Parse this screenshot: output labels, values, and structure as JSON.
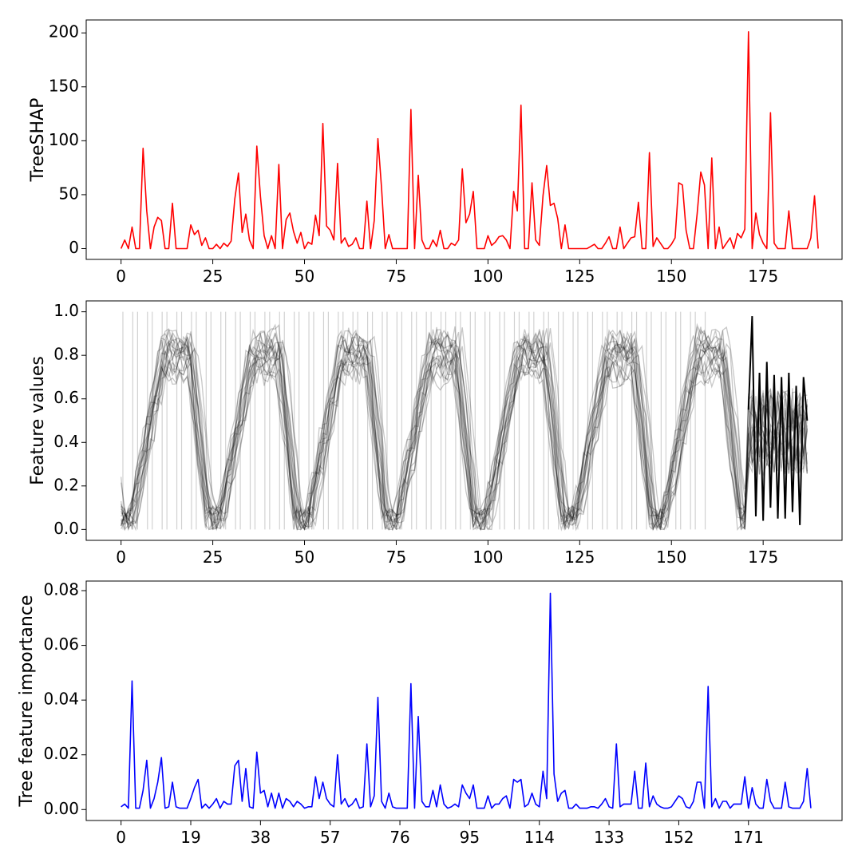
{
  "chart_data": [
    {
      "type": "line",
      "ylabel": "TreeSHAP",
      "xlim": [
        -9.5,
        196.5
      ],
      "ylim": [
        -10,
        212
      ],
      "x_ticks": [
        0,
        25,
        50,
        75,
        100,
        125,
        150,
        175
      ],
      "y_ticks": [
        0,
        50,
        100,
        150,
        200
      ],
      "color": "#ff0000",
      "series": [
        {
          "values": [
            0,
            8,
            0,
            20,
            0,
            0,
            93,
            35,
            0,
            20,
            29,
            26,
            0,
            0,
            42,
            0,
            0,
            0,
            0,
            22,
            13,
            17,
            3,
            10,
            0,
            0,
            4,
            0,
            5,
            2,
            7,
            46,
            70,
            15,
            32,
            8,
            0,
            95,
            48,
            12,
            0,
            12,
            0,
            78,
            0,
            27,
            33,
            16,
            5,
            15,
            0,
            6,
            4,
            31,
            12,
            116,
            21,
            17,
            8,
            79,
            5,
            10,
            2,
            4,
            10,
            0,
            0,
            44,
            0,
            26,
            102,
            56,
            0,
            13,
            0,
            0,
            0,
            0,
            0,
            129,
            0,
            68,
            8,
            0,
            0,
            8,
            2,
            17,
            0,
            0,
            5,
            3,
            8,
            74,
            24,
            32,
            53,
            0,
            0,
            0,
            12,
            3,
            6,
            11,
            12,
            8,
            0,
            53,
            35,
            133,
            0,
            0,
            61,
            8,
            3,
            49,
            77,
            40,
            42,
            28,
            0,
            22,
            0,
            0,
            0,
            0,
            0,
            0,
            2,
            4,
            0,
            0,
            5,
            11,
            0,
            0,
            20,
            0,
            5,
            10,
            11,
            43,
            0,
            0,
            89,
            2,
            10,
            5,
            0,
            0,
            4,
            10,
            61,
            59,
            17,
            0,
            0,
            32,
            71,
            59,
            0,
            84,
            0,
            20,
            0,
            5,
            10,
            0,
            14,
            10,
            18,
            201,
            0,
            33,
            13,
            5,
            0,
            126,
            5,
            0,
            0,
            0,
            35,
            0,
            0,
            0,
            0,
            0,
            10,
            49,
            0
          ]
        }
      ]
    },
    {
      "type": "line",
      "ylabel": "Feature values",
      "xlim": [
        -9.5,
        196.5
      ],
      "ylim": [
        -0.05,
        1.05
      ],
      "x_ticks": [
        0,
        25,
        50,
        75,
        100,
        125,
        150,
        175
      ],
      "y_ticks": [
        0.0,
        0.2,
        0.4,
        0.6,
        0.8,
        1.0
      ],
      "y_tick_labels": [
        "0.0",
        "0.2",
        "0.4",
        "0.6",
        "0.8",
        "1.0"
      ],
      "color": "#000000",
      "n_points": 188,
      "n_overlaid_samples": 20,
      "cycle_centers": [
        12,
        38,
        62,
        86,
        110,
        135,
        158
      ],
      "highlight_segment_x": [
        171,
        172,
        173,
        174,
        175,
        176,
        177,
        178,
        179,
        180,
        181,
        182,
        183,
        184,
        185,
        186,
        187
      ],
      "highlight_segment_values": [
        0.55,
        0.98,
        0.06,
        0.72,
        0.04,
        0.77,
        0.1,
        0.71,
        0.05,
        0.7,
        0.05,
        0.72,
        0.08,
        0.66,
        0.02,
        0.7,
        0.5
      ]
    },
    {
      "type": "line",
      "ylabel": "Tree feature importance",
      "xlim": [
        -9.5,
        196.5
      ],
      "ylim": [
        -0.004,
        0.0835
      ],
      "x_ticks": [
        0,
        19,
        38,
        57,
        76,
        95,
        114,
        133,
        152,
        171
      ],
      "y_ticks": [
        0.0,
        0.02,
        0.04,
        0.06,
        0.08
      ],
      "y_tick_labels": [
        "0.00",
        "0.02",
        "0.04",
        "0.06",
        "0.08"
      ],
      "color": "#0000ff",
      "series": [
        {
          "values": [
            0.001,
            0.002,
            0.0005,
            0.047,
            0.0005,
            0.0005,
            0.007,
            0.018,
            0.0005,
            0.004,
            0.01,
            0.019,
            0.0005,
            0.001,
            0.01,
            0.001,
            0.0005,
            0.0005,
            0.0005,
            0.004,
            0.008,
            0.011,
            0.0005,
            0.002,
            0.0005,
            0.002,
            0.004,
            0.0005,
            0.003,
            0.002,
            0.002,
            0.016,
            0.018,
            0.003,
            0.015,
            0.001,
            0.0005,
            0.021,
            0.006,
            0.007,
            0.001,
            0.006,
            0.0005,
            0.006,
            0.0005,
            0.004,
            0.003,
            0.001,
            0.003,
            0.002,
            0.0005,
            0.001,
            0.001,
            0.012,
            0.004,
            0.01,
            0.004,
            0.002,
            0.001,
            0.02,
            0.002,
            0.004,
            0.001,
            0.002,
            0.004,
            0.0005,
            0.001,
            0.024,
            0.001,
            0.005,
            0.041,
            0.003,
            0.0005,
            0.006,
            0.001,
            0.0005,
            0.0005,
            0.0005,
            0.0005,
            0.046,
            0.0005,
            0.034,
            0.003,
            0.001,
            0.001,
            0.007,
            0.001,
            0.009,
            0.002,
            0.0005,
            0.001,
            0.002,
            0.001,
            0.009,
            0.006,
            0.004,
            0.009,
            0.0005,
            0.0005,
            0.0005,
            0.005,
            0.0005,
            0.002,
            0.002,
            0.004,
            0.005,
            0.0005,
            0.011,
            0.01,
            0.011,
            0.001,
            0.002,
            0.006,
            0.002,
            0.001,
            0.014,
            0.004,
            0.079,
            0.013,
            0.003,
            0.006,
            0.007,
            0.0005,
            0.0005,
            0.002,
            0.0005,
            0.0005,
            0.0005,
            0.001,
            0.001,
            0.0005,
            0.002,
            0.004,
            0.001,
            0.0005,
            0.024,
            0.001,
            0.002,
            0.002,
            0.002,
            0.014,
            0.0005,
            0.0005,
            0.017,
            0.001,
            0.005,
            0.002,
            0.001,
            0.0005,
            0.0005,
            0.001,
            0.003,
            0.005,
            0.004,
            0.001,
            0.0005,
            0.003,
            0.01,
            0.01,
            0.0005,
            0.045,
            0.001,
            0.004,
            0.0005,
            0.003,
            0.003,
            0.0005,
            0.002,
            0.002,
            0.002,
            0.012,
            0.0005,
            0.008,
            0.002,
            0.0005,
            0.0005,
            0.011,
            0.003,
            0.0005,
            0.0005,
            0.0005,
            0.01,
            0.001,
            0.0005,
            0.0005,
            0.0005,
            0.003,
            0.015,
            0.0005
          ]
        }
      ]
    }
  ]
}
